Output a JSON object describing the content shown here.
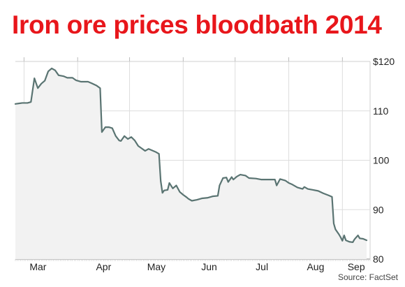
{
  "title": "Iron ore prices bloodbath 2014",
  "source": "Source: FactSet",
  "colors": {
    "title": "#e8161b",
    "line": "#5a7472",
    "fill": "#f2f2f2",
    "grid": "#dddddd"
  },
  "chart_data": {
    "type": "area",
    "title": "Iron ore prices bloodbath 2014",
    "xlabel": "",
    "ylabel": "",
    "ylim": [
      80,
      120
    ],
    "y_ticks": [
      {
        "value": 120,
        "label": "$120"
      },
      {
        "value": 110,
        "label": "110"
      },
      {
        "value": 100,
        "label": "100"
      },
      {
        "value": 90,
        "label": "90"
      },
      {
        "value": 80,
        "label": "80"
      }
    ],
    "x_ticks": [
      "Mar",
      "Apr",
      "May",
      "Jun",
      "Jul",
      "Aug",
      "Sep"
    ],
    "xlim": [
      "2014-02-24",
      "2014-09-17"
    ],
    "grid": true,
    "series": [
      {
        "points": [
          [
            "2014-02-24",
            111.4
          ],
          [
            "2014-02-26",
            111.5
          ],
          [
            "2014-02-28",
            111.6
          ],
          [
            "2014-03-03",
            111.6
          ],
          [
            "2014-03-05",
            111.8
          ],
          [
            "2014-03-07",
            116.6
          ],
          [
            "2014-03-09",
            114.6
          ],
          [
            "2014-03-11",
            115.5
          ],
          [
            "2014-03-13",
            116.1
          ],
          [
            "2014-03-15",
            118.0
          ],
          [
            "2014-03-17",
            118.6
          ],
          [
            "2014-03-19",
            118.2
          ],
          [
            "2014-03-21",
            117.2
          ],
          [
            "2014-03-24",
            117.0
          ],
          [
            "2014-03-26",
            116.7
          ],
          [
            "2014-03-29",
            116.7
          ],
          [
            "2014-03-31",
            116.2
          ],
          [
            "2014-04-03",
            115.9
          ],
          [
            "2014-04-07",
            115.9
          ],
          [
            "2014-04-09",
            115.6
          ],
          [
            "2014-04-12",
            115.1
          ],
          [
            "2014-04-14",
            114.6
          ],
          [
            "2014-04-15",
            105.7
          ],
          [
            "2014-04-17",
            106.7
          ],
          [
            "2014-04-19",
            106.7
          ],
          [
            "2014-04-21",
            106.5
          ],
          [
            "2014-04-23",
            104.9
          ],
          [
            "2014-04-25",
            104.0
          ],
          [
            "2014-04-26",
            103.9
          ],
          [
            "2014-04-28",
            104.9
          ],
          [
            "2014-04-30",
            104.3
          ],
          [
            "2014-05-02",
            104.7
          ],
          [
            "2014-05-04",
            104.0
          ],
          [
            "2014-05-06",
            102.9
          ],
          [
            "2014-05-08",
            102.4
          ],
          [
            "2014-05-10",
            101.9
          ],
          [
            "2014-05-12",
            102.3
          ],
          [
            "2014-05-14",
            102.0
          ],
          [
            "2014-05-16",
            101.7
          ],
          [
            "2014-05-18",
            101.3
          ],
          [
            "2014-05-19",
            95.8
          ],
          [
            "2014-05-20",
            93.4
          ],
          [
            "2014-05-21",
            93.9
          ],
          [
            "2014-05-23",
            94.0
          ],
          [
            "2014-05-24",
            95.4
          ],
          [
            "2014-05-26",
            94.3
          ],
          [
            "2014-05-28",
            94.9
          ],
          [
            "2014-05-30",
            93.6
          ],
          [
            "2014-06-01",
            93.0
          ],
          [
            "2014-06-03",
            92.5
          ],
          [
            "2014-06-04",
            92.2
          ],
          [
            "2014-06-06",
            91.8
          ],
          [
            "2014-06-09",
            92.0
          ],
          [
            "2014-06-12",
            92.3
          ],
          [
            "2014-06-15",
            92.4
          ],
          [
            "2014-06-18",
            92.7
          ],
          [
            "2014-06-21",
            92.8
          ],
          [
            "2014-06-22",
            94.9
          ],
          [
            "2014-06-24",
            96.4
          ],
          [
            "2014-06-26",
            96.5
          ],
          [
            "2014-06-27",
            95.6
          ],
          [
            "2014-06-29",
            96.6
          ],
          [
            "2014-06-30",
            96.1
          ],
          [
            "2014-07-02",
            96.7
          ],
          [
            "2014-07-04",
            97.1
          ],
          [
            "2014-07-07",
            96.9
          ],
          [
            "2014-07-09",
            96.4
          ],
          [
            "2014-07-13",
            96.3
          ],
          [
            "2014-07-16",
            96.1
          ],
          [
            "2014-07-19",
            96.1
          ],
          [
            "2014-07-22",
            96.1
          ],
          [
            "2014-07-24",
            96.1
          ],
          [
            "2014-07-25",
            94.9
          ],
          [
            "2014-07-27",
            96.2
          ],
          [
            "2014-07-30",
            95.9
          ],
          [
            "2014-08-01",
            95.4
          ],
          [
            "2014-08-03",
            95.1
          ],
          [
            "2014-08-06",
            94.5
          ],
          [
            "2014-08-09",
            94.2
          ],
          [
            "2014-08-10",
            94.6
          ],
          [
            "2014-08-12",
            94.2
          ],
          [
            "2014-08-15",
            94.0
          ],
          [
            "2014-08-18",
            93.8
          ],
          [
            "2014-08-21",
            93.3
          ],
          [
            "2014-08-24",
            92.9
          ],
          [
            "2014-08-26",
            92.6
          ],
          [
            "2014-08-27",
            87.2
          ],
          [
            "2014-08-28",
            86.0
          ],
          [
            "2014-08-30",
            85.0
          ],
          [
            "2014-08-31",
            84.4
          ],
          [
            "2014-09-01",
            83.7
          ],
          [
            "2014-09-02",
            84.8
          ],
          [
            "2014-09-03",
            83.8
          ],
          [
            "2014-09-05",
            83.5
          ],
          [
            "2014-09-07",
            83.4
          ],
          [
            "2014-09-08",
            84.0
          ],
          [
            "2014-09-10",
            84.8
          ],
          [
            "2014-09-11",
            84.2
          ],
          [
            "2014-09-13",
            84.1
          ],
          [
            "2014-09-15",
            83.8
          ]
        ]
      }
    ]
  }
}
